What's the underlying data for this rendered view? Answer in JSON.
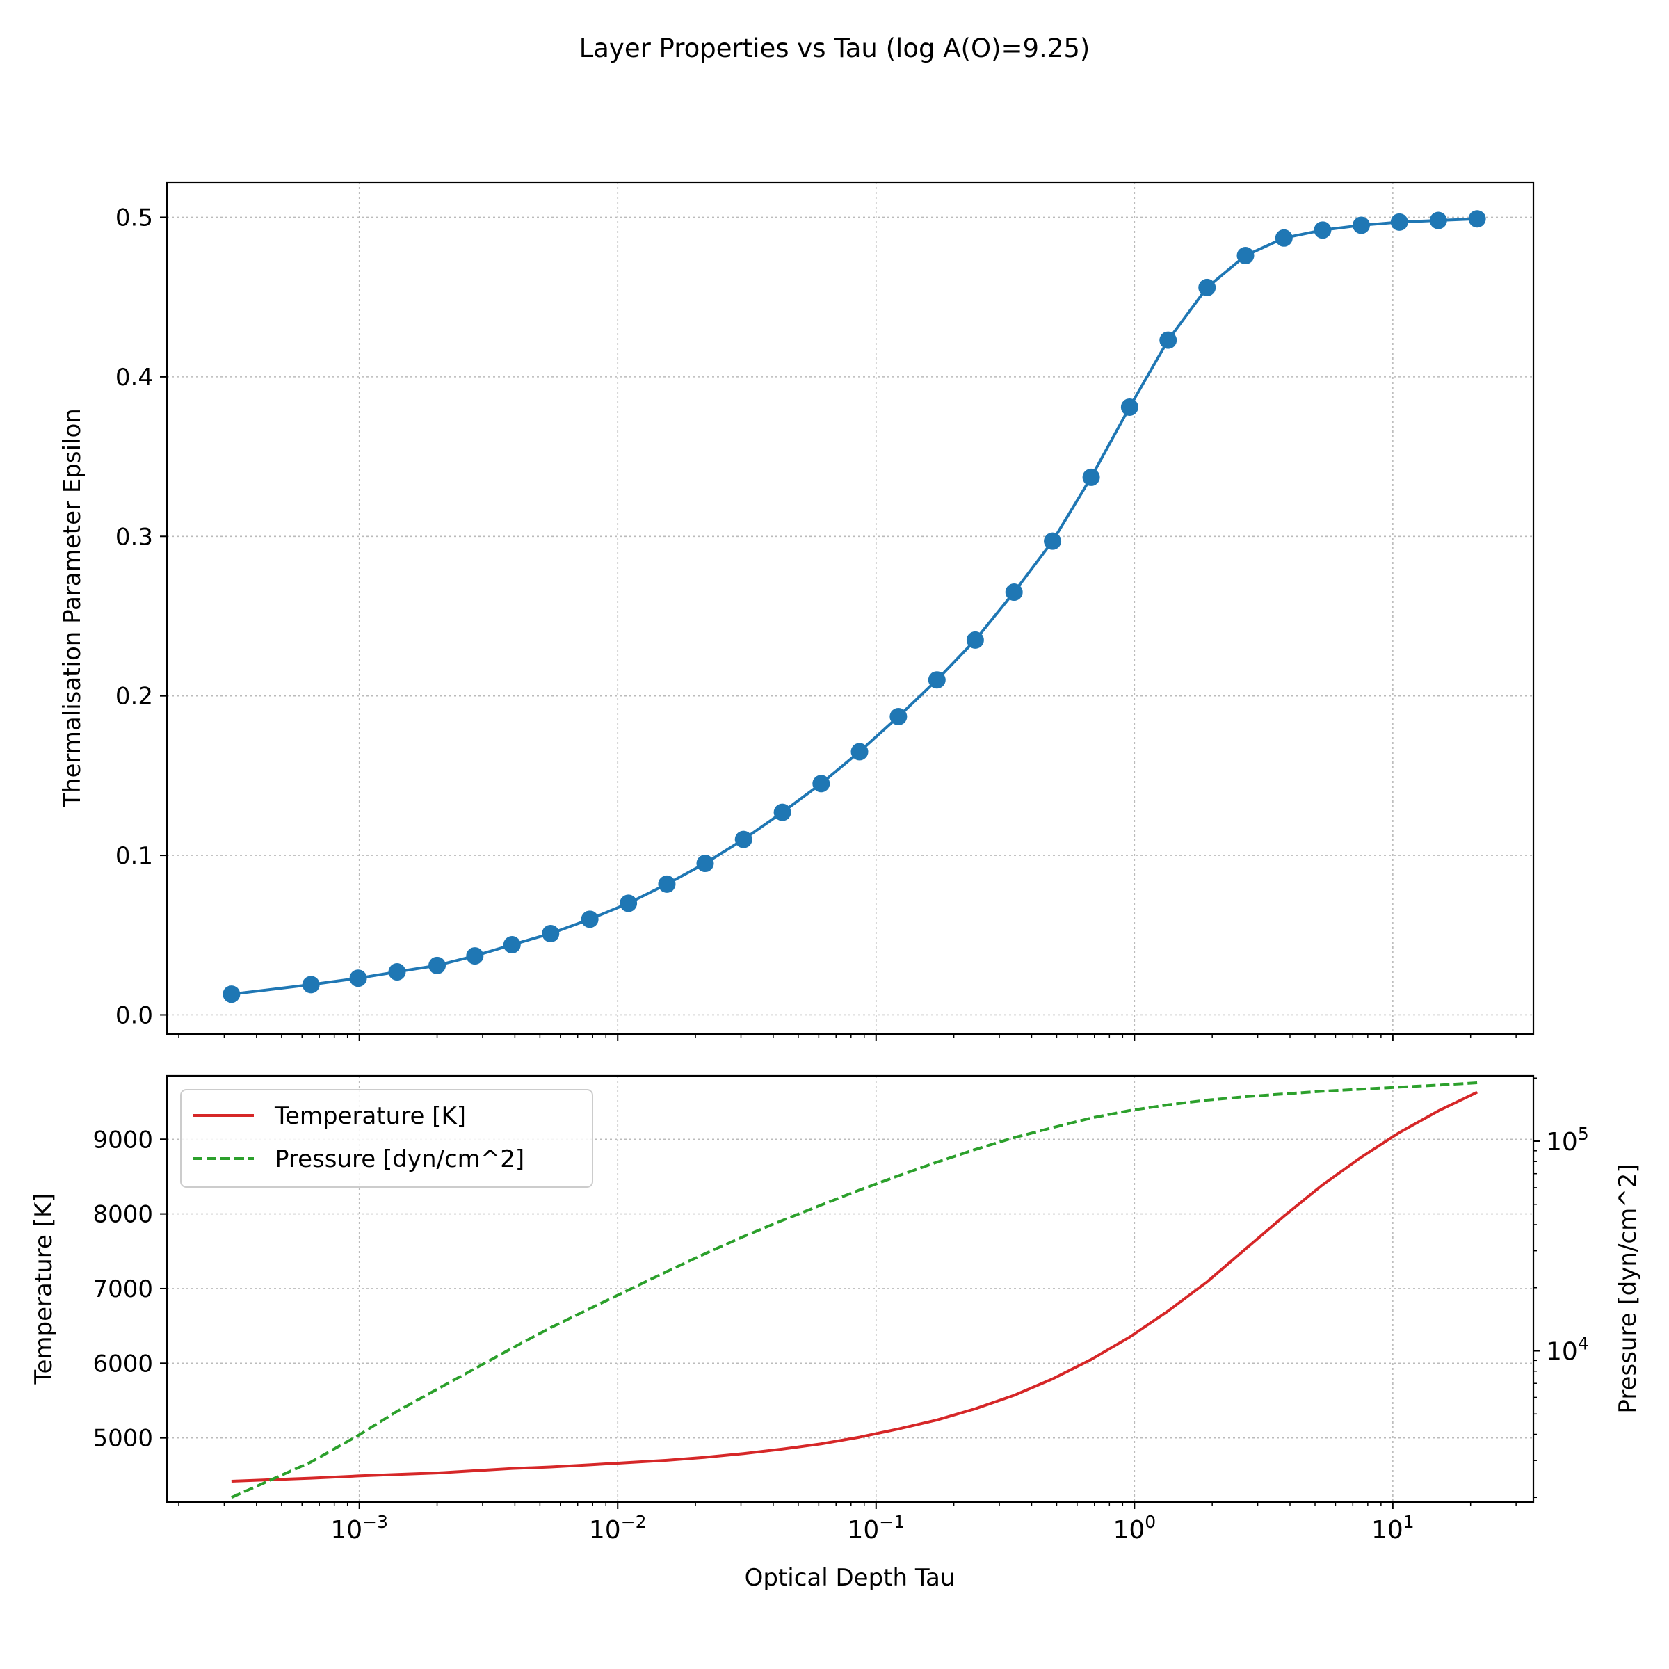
{
  "figure_title": "Layer Properties vs Tau (log A(O)=9.25)",
  "chart_data": [
    {
      "type": "line",
      "panel": "top",
      "title": "",
      "xlabel": "",
      "ylabel": "Thermalisation Parameter Epsilon",
      "x_scale": "log",
      "xlim": [
        0.00018,
        35
      ],
      "ylim": [
        -0.012,
        0.522
      ],
      "yticks": [
        0.0,
        0.1,
        0.2,
        0.3,
        0.4,
        0.5
      ],
      "ytick_labels": [
        "0.0",
        "0.1",
        "0.2",
        "0.3",
        "0.4",
        "0.5"
      ],
      "grid": true,
      "series": [
        {
          "color": "#1f77b4",
          "marker": "circle",
          "x": [
            0.00032,
            0.00065,
            0.00099,
            0.0014,
            0.002,
            0.0028,
            0.0039,
            0.0055,
            0.0078,
            0.011,
            0.0155,
            0.0218,
            0.0307,
            0.0434,
            0.0613,
            0.0863,
            0.122,
            0.172,
            0.242,
            0.342,
            0.482,
            0.68,
            0.958,
            1.35,
            1.91,
            2.69,
            3.79,
            5.35,
            7.55,
            10.6,
            15.0,
            21.2
          ],
          "values": [
            0.013,
            0.019,
            0.023,
            0.027,
            0.031,
            0.037,
            0.044,
            0.051,
            0.06,
            0.07,
            0.082,
            0.095,
            0.11,
            0.127,
            0.145,
            0.165,
            0.187,
            0.21,
            0.235,
            0.265,
            0.297,
            0.337,
            0.381,
            0.423,
            0.456,
            0.476,
            0.487,
            0.492,
            0.495,
            0.497,
            0.498,
            0.499
          ]
        }
      ]
    },
    {
      "type": "line",
      "panel": "bottom",
      "title": "",
      "xlabel": "Optical Depth Tau",
      "ylabel": "Temperature [K]",
      "ylabel_right": "Pressure [dyn/cm^2]",
      "x_scale": "log",
      "xlim": [
        0.00018,
        35
      ],
      "xtick_labels": [
        {
          "base": "10",
          "exp": "−3",
          "value": 0.001
        },
        {
          "base": "10",
          "exp": "−2",
          "value": 0.01
        },
        {
          "base": "10",
          "exp": "−1",
          "value": 0.1
        },
        {
          "base": "10",
          "exp": "0",
          "value": 1
        },
        {
          "base": "10",
          "exp": "1",
          "value": 10
        }
      ],
      "ylim": [
        4140,
        9850
      ],
      "yticks": [
        5000,
        6000,
        7000,
        8000,
        9000
      ],
      "ytick_labels": [
        "5000",
        "6000",
        "7000",
        "8000",
        "9000"
      ],
      "y2_scale": "log",
      "y2lim": [
        1900,
        205000
      ],
      "y2tick_labels": [
        {
          "base": "10",
          "exp": "4",
          "value": 10000
        },
        {
          "base": "10",
          "exp": "5",
          "value": 100000
        }
      ],
      "grid": true,
      "legend": "upper-left",
      "series": [
        {
          "name": "Temperature [K]",
          "color": "#d62728",
          "dash": "solid",
          "axis": "left",
          "x": [
            0.00032,
            0.00065,
            0.00099,
            0.0014,
            0.002,
            0.0028,
            0.0039,
            0.0055,
            0.0078,
            0.011,
            0.0155,
            0.0218,
            0.0307,
            0.0434,
            0.0613,
            0.0863,
            0.122,
            0.172,
            0.242,
            0.342,
            0.482,
            0.68,
            0.958,
            1.35,
            1.91,
            2.69,
            3.79,
            5.35,
            7.55,
            10.6,
            15.0,
            21.2
          ],
          "values": [
            4420,
            4460,
            4490,
            4510,
            4530,
            4560,
            4590,
            4610,
            4640,
            4670,
            4700,
            4740,
            4790,
            4850,
            4920,
            5010,
            5120,
            5240,
            5390,
            5570,
            5790,
            6050,
            6350,
            6700,
            7090,
            7530,
            7970,
            8390,
            8760,
            9090,
            9380,
            9630
          ]
        },
        {
          "name": "Pressure [dyn/cm^2]",
          "color": "#2ca02c",
          "dash": "dashed",
          "axis": "right",
          "x": [
            0.00032,
            0.00065,
            0.00099,
            0.0014,
            0.002,
            0.0028,
            0.0039,
            0.0055,
            0.0078,
            0.011,
            0.0155,
            0.0218,
            0.0307,
            0.0434,
            0.0613,
            0.0863,
            0.122,
            0.172,
            0.242,
            0.342,
            0.482,
            0.68,
            0.958,
            1.35,
            1.91,
            2.69,
            3.79,
            5.35,
            7.55,
            10.6,
            15.0,
            21.2
          ],
          "values": [
            2000,
            2950,
            3950,
            5150,
            6560,
            8230,
            10300,
            12900,
            15900,
            19500,
            23900,
            29100,
            35100,
            41900,
            49600,
            58500,
            68400,
            79400,
            91300,
            104000,
            116000,
            129000,
            140000,
            149000,
            157000,
            163000,
            168000,
            173000,
            177000,
            181000,
            185000,
            190000
          ]
        }
      ]
    }
  ]
}
